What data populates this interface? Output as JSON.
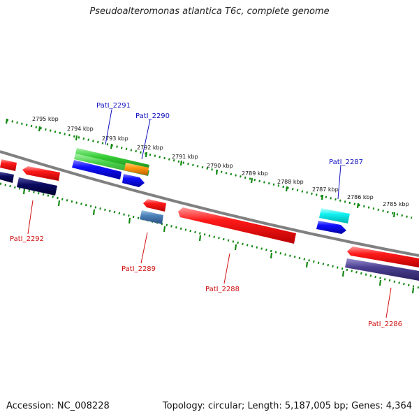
{
  "title": "Pseudoalteromonas atlantica T6c, complete genome",
  "footer": {
    "accession": "Accession: NC_008228",
    "summary": "Topology: circular; Length: 5,187,005 bp; Genes: 4,364"
  },
  "colors": {
    "backbone": "#808080",
    "tick_ring": "#118811",
    "label_forward": "#1010c0",
    "label_reverse": "#d01010"
  },
  "scale_labels": [
    "2795 kbp",
    "2794 kbp",
    "2793 kbp",
    "2792 kbp",
    "2791 kbp",
    "2790 kbp",
    "2789 kbp",
    "2788 kbp",
    "2787 kbp",
    "2786 kbp",
    "2785 kbp"
  ],
  "gene_labels": {
    "forward": [
      "PatI_2291",
      "PatI_2290",
      "PatI_2287"
    ],
    "reverse": [
      "PatI_2292",
      "PatI_2289",
      "PatI_2288",
      "PatI_2286"
    ]
  }
}
